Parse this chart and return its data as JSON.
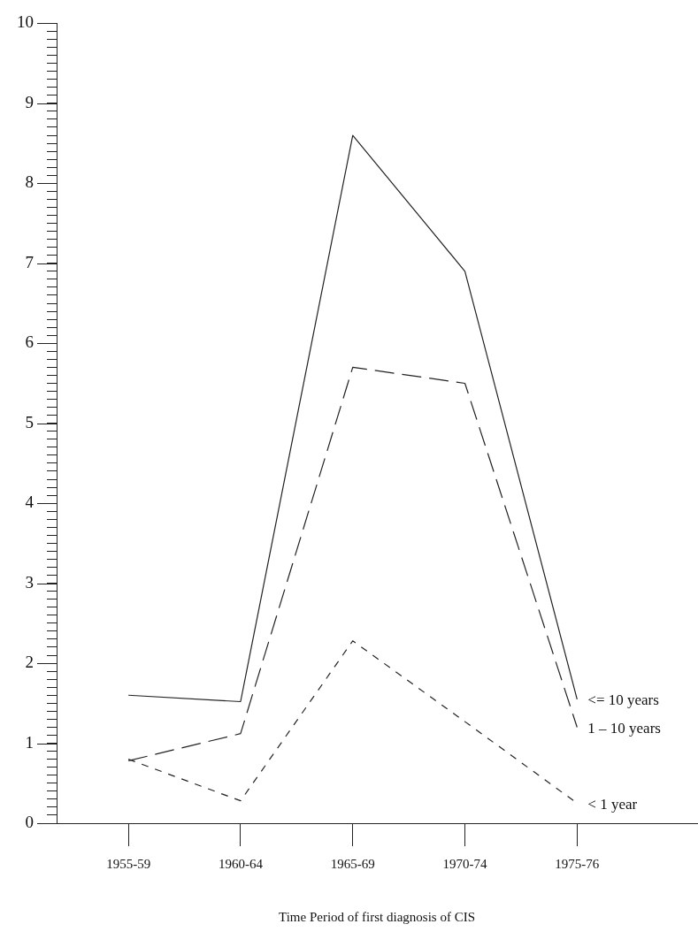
{
  "chart_data": {
    "type": "line",
    "xlabel": "Time Period of first diagnosis of CIS",
    "categories": [
      "1955-59",
      "1960-64",
      "1965-69",
      "1970-74",
      "1975-76"
    ],
    "series": [
      {
        "name": "<= 10 years",
        "color": "#222222",
        "line_style": "solid",
        "values": [
          1.6,
          1.52,
          8.6,
          6.9,
          1.55
        ]
      },
      {
        "name": "1 – 10 years",
        "color": "#222222",
        "line_style": "dashed",
        "values": [
          0.78,
          1.12,
          5.7,
          5.5,
          1.2
        ]
      },
      {
        "name": "< 1 year",
        "color": "#222222",
        "line_style": "dashed",
        "values": [
          0.8,
          0.28,
          2.28,
          1.27,
          0.25
        ]
      }
    ],
    "marker": "none",
    "legend": false,
    "grid": false,
    "ylim": [
      0,
      10
    ],
    "yticks": [
      0,
      {
        "value": 0.1,
        "label": null
      },
      {
        "value": 0.2,
        "label": null
      },
      {
        "value": 0.3,
        "label": null
      },
      {
        "value": 0.4,
        "label": null
      },
      {
        "value": 0.5,
        "label": null
      },
      {
        "value": 0.6,
        "label": null
      },
      {
        "value": 0.7,
        "label": null
      },
      {
        "value": 0.8,
        "label": null
      },
      {
        "value": 0.9,
        "label": null
      },
      1,
      {
        "value": 1.1,
        "label": null
      },
      {
        "value": 1.2,
        "label": null
      },
      {
        "value": 1.3,
        "label": null
      },
      {
        "value": 1.4,
        "label": null
      },
      {
        "value": 1.5,
        "label": null
      },
      {
        "value": 1.6,
        "label": null
      },
      {
        "value": 1.7,
        "label": null
      },
      {
        "value": 1.8,
        "label": null
      },
      {
        "value": 1.9,
        "label": null
      },
      2,
      {
        "value": 2.1,
        "label": null
      },
      {
        "value": 2.2,
        "label": null
      },
      {
        "value": 2.3,
        "label": null
      },
      {
        "value": 2.4,
        "label": null
      },
      {
        "value": 2.5,
        "label": null
      },
      {
        "value": 2.6,
        "label": null
      },
      {
        "value": 2.7,
        "label": null
      },
      {
        "value": 2.8,
        "label": null
      },
      {
        "value": 2.9,
        "label": null
      },
      3,
      {
        "value": 3.1,
        "label": null
      },
      {
        "value": 3.2,
        "label": null
      },
      {
        "value": 3.3,
        "label": null
      },
      {
        "value": 3.4,
        "label": null
      },
      {
        "value": 3.5,
        "label": null
      },
      {
        "value": 3.6,
        "label": null
      },
      {
        "value": 3.7,
        "label": null
      },
      {
        "value": 3.8,
        "label": null
      },
      {
        "value": 3.9,
        "label": null
      },
      4,
      {
        "value": 4.1,
        "label": null
      },
      {
        "value": 4.2,
        "label": null
      },
      {
        "value": 4.3,
        "label": null
      },
      {
        "value": 4.4,
        "label": null
      },
      {
        "value": 4.5,
        "label": null
      },
      {
        "value": 4.6,
        "label": null
      },
      {
        "value": 4.7,
        "label": null
      },
      {
        "value": 4.8,
        "label": null
      },
      {
        "value": 4.9,
        "label": null
      },
      5,
      {
        "value": 5.1,
        "label": null
      },
      {
        "value": 5.2,
        "label": null
      },
      {
        "value": 5.3,
        "label": null
      },
      {
        "value": 5.4,
        "label": null
      },
      {
        "value": 5.5,
        "label": null
      },
      {
        "value": 5.6,
        "label": null
      },
      {
        "value": 5.7,
        "label": null
      },
      {
        "value": 5.8,
        "label": null
      },
      {
        "value": 5.9,
        "label": null
      },
      6,
      {
        "value": 6.1,
        "label": null
      },
      {
        "value": 6.2,
        "label": null
      },
      {
        "value": 6.3,
        "label": null
      },
      {
        "value": 6.4,
        "label": null
      },
      {
        "value": 6.5,
        "label": null
      },
      {
        "value": 6.6,
        "label": null
      },
      {
        "value": 6.7,
        "label": null
      },
      {
        "value": 6.8,
        "label": null
      },
      {
        "value": 6.9,
        "label": null
      },
      7,
      {
        "value": 7.1,
        "label": null
      },
      {
        "value": 7.2,
        "label": null
      },
      {
        "value": 7.3,
        "label": null
      },
      {
        "value": 7.4,
        "label": null
      },
      {
        "value": 7.5,
        "label": null
      },
      {
        "value": 7.6,
        "label": null
      },
      {
        "value": 7.7,
        "label": null
      },
      {
        "value": 7.8,
        "label": null
      },
      {
        "value": 7.9,
        "label": null
      },
      8,
      {
        "value": 8.1,
        "label": null
      },
      {
        "value": 8.2,
        "label": null
      },
      {
        "value": 8.3,
        "label": null
      },
      {
        "value": 8.4,
        "label": null
      },
      {
        "value": 8.5,
        "label": null
      },
      {
        "value": 8.6,
        "label": null
      },
      {
        "value": 8.7,
        "label": null
      },
      {
        "value": 8.8,
        "label": null
      },
      {
        "value": 8.9,
        "label": null
      },
      9,
      {
        "value": 9.1,
        "label": null
      },
      {
        "value": 9.2,
        "label": null
      },
      {
        "value": 9.3,
        "label": null
      },
      {
        "value": 9.4,
        "label": null
      },
      {
        "value": 9.5,
        "label": null
      },
      {
        "value": 9.6,
        "label": null
      },
      {
        "value": 9.7,
        "label": null
      },
      {
        "value": 9.8,
        "label": null
      },
      {
        "value": 9.9,
        "label": null
      },
      10
    ]
  }
}
